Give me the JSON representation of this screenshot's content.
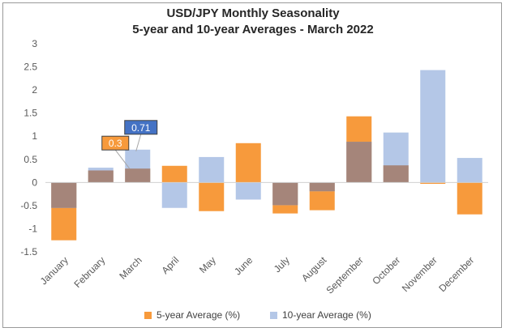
{
  "chart_data": {
    "type": "bar",
    "title": "USD/JPY Monthly Seasonality",
    "subtitle": "5-year and 10-year Averages - March 2022",
    "categories": [
      "January",
      "February",
      "March",
      "April",
      "May",
      "June",
      "July",
      "August",
      "September",
      "October",
      "November",
      "December"
    ],
    "series": [
      {
        "name": "5-year Average (%)",
        "color": "#f79a3c",
        "values": [
          -1.25,
          0.26,
          0.3,
          0.36,
          -0.62,
          0.85,
          -0.67,
          -0.6,
          1.43,
          0.37,
          -0.03,
          -0.69
        ]
      },
      {
        "name": "10-year Average (%)",
        "color": "#b4c7e7",
        "values": [
          -0.55,
          0.32,
          0.71,
          -0.55,
          0.55,
          -0.37,
          -0.49,
          -0.19,
          0.88,
          1.08,
          2.43,
          0.53
        ]
      }
    ],
    "overlap_color": "#a5857a",
    "ylim": [
      -1.5,
      3
    ],
    "yticks": [
      "3",
      "2.5",
      "2",
      "1.5",
      "1",
      "0.5",
      "0",
      "-0.5",
      "-1",
      "-1.5"
    ],
    "annotations": [
      {
        "label": "0.3",
        "month": "March",
        "series": "5-year Average (%)",
        "color": "#f79a3c"
      },
      {
        "label": "0.71",
        "month": "March",
        "series": "10-year Average (%)",
        "color": "#4472c4"
      }
    ],
    "legend_position": "bottom",
    "grid": false
  }
}
